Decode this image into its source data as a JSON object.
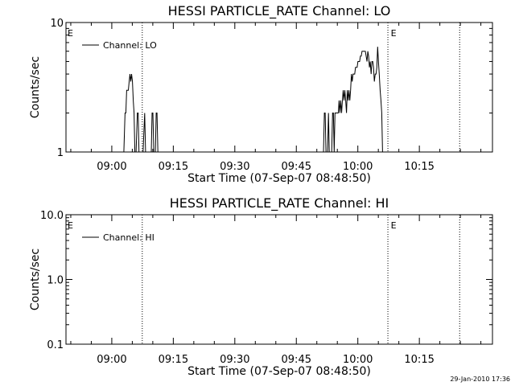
{
  "footer": {
    "timestamp": "29-Jan-2010 17:36"
  },
  "chart_data": [
    {
      "type": "line",
      "title": "HESSI PARTICLE_RATE Channel: LO",
      "xlabel": "Start Time (07-Sep-07 08:48:50)",
      "ylabel": "Counts/sec",
      "yscale": "log",
      "ylim": [
        1,
        10
      ],
      "y_tick_labels": [
        "1",
        "10"
      ],
      "x_tick_labels": [
        "09:00",
        "09:15",
        "09:30",
        "09:45",
        "10:00",
        "10:15"
      ],
      "x_tick_minutes": [
        11.17,
        26.17,
        41.17,
        56.17,
        71.17,
        86.17
      ],
      "xlim_minutes": [
        0,
        104
      ],
      "legend_label": "Channel: LO",
      "legend_position": "top-left",
      "eclipse_marker": "E",
      "eclipse_boundaries_minutes": [
        18.6,
        78.5,
        96.0
      ],
      "eclipse_label_minutes": [
        0.2,
        79.0
      ],
      "series": [
        {
          "name": "Channel: LO",
          "x": [
            0,
            14.1,
            14.4,
            14.6,
            14.8,
            15.0,
            15.2,
            15.4,
            15.6,
            15.8,
            16.0,
            16.2,
            16.4,
            16.6,
            16.8,
            17.1,
            17.4,
            17.6,
            17.8,
            18.0,
            18.2,
            18.4,
            18.6,
            18.8,
            19.2,
            19.4,
            19.6,
            19.9,
            20.1,
            20.4,
            20.8,
            21.0,
            21.2,
            21.4,
            21.8,
            22.0,
            22.2,
            22.4,
            62.8,
            63.0,
            63.2,
            63.4,
            63.8,
            64.0,
            64.2,
            64.4,
            64.8,
            65.0,
            65.2,
            65.4,
            65.6,
            65.8,
            66.0,
            66.2,
            66.4,
            66.6,
            66.8,
            67.0,
            67.2,
            67.4,
            67.6,
            67.8,
            68.0,
            68.2,
            68.4,
            68.6,
            68.8,
            69.0,
            69.2,
            69.4,
            69.6,
            69.8,
            70.0,
            70.2,
            70.4,
            70.6,
            70.8,
            71.0,
            71.2,
            71.4,
            71.6,
            71.8,
            72.0,
            72.2,
            72.4,
            72.6,
            72.8,
            73.0,
            73.2,
            73.4,
            73.6,
            73.8,
            74.0,
            74.2,
            74.4,
            74.6,
            74.8,
            75.0,
            75.2,
            75.4,
            75.6,
            75.8,
            76.0,
            76.2,
            76.4,
            76.6,
            76.8,
            77.0,
            77.2,
            77.4,
            77.6,
            77.8,
            78.0,
            104
          ],
          "y": [
            1,
            1,
            2.0,
            2.0,
            3.0,
            3.0,
            3.0,
            3.5,
            4.0,
            3.5,
            4.0,
            3.5,
            2.5,
            2.0,
            1,
            1,
            2.0,
            2.0,
            1,
            1,
            1,
            1,
            1,
            1,
            2.0,
            1,
            1,
            1,
            1,
            1,
            1,
            2.0,
            2.0,
            1,
            1,
            2.0,
            2.0,
            1,
            1,
            2.0,
            2.0,
            1,
            1,
            2.0,
            1,
            1,
            1,
            2.0,
            2.0,
            1,
            2.0,
            2.0,
            2.0,
            2.0,
            2.0,
            2.5,
            2.0,
            2.5,
            2.0,
            2.5,
            3.0,
            2.5,
            3.0,
            2.5,
            2.0,
            3.0,
            2.5,
            3.0,
            2.5,
            3.0,
            4.0,
            3.5,
            4.0,
            4.0,
            4.0,
            4.5,
            4.5,
            4.5,
            5.0,
            5.0,
            5.0,
            5.5,
            5.5,
            6.0,
            6.0,
            6.0,
            6.0,
            6.0,
            5.5,
            5.0,
            6.0,
            5.5,
            4.5,
            5.0,
            4.0,
            5.0,
            5.0,
            4.5,
            3.5,
            4.0,
            4.0,
            4.5,
            6.5,
            5.0,
            4.0,
            3.0,
            2.5,
            2.0,
            1,
            1,
            1,
            1,
            1,
            1
          ]
        }
      ]
    },
    {
      "type": "line",
      "title": "HESSI PARTICLE_RATE Channel: HI",
      "xlabel": "Start Time (07-Sep-07 08:48:50)",
      "ylabel": "Counts/sec",
      "yscale": "log",
      "ylim": [
        0.1,
        10
      ],
      "y_tick_labels": [
        "0.1",
        "1.0",
        "10.0"
      ],
      "x_tick_labels": [
        "09:00",
        "09:15",
        "09:30",
        "09:45",
        "10:00",
        "10:15"
      ],
      "x_tick_minutes": [
        11.17,
        26.17,
        41.17,
        56.17,
        71.17,
        86.17
      ],
      "xlim_minutes": [
        0,
        104
      ],
      "legend_label": "Channel: HI",
      "legend_position": "top-left",
      "eclipse_marker": "E",
      "eclipse_boundaries_minutes": [
        18.6,
        78.5,
        96.0
      ],
      "eclipse_label_minutes": [
        0.2,
        79.0
      ],
      "series": [
        {
          "name": "Channel: HI",
          "x": [],
          "y": []
        }
      ]
    }
  ]
}
